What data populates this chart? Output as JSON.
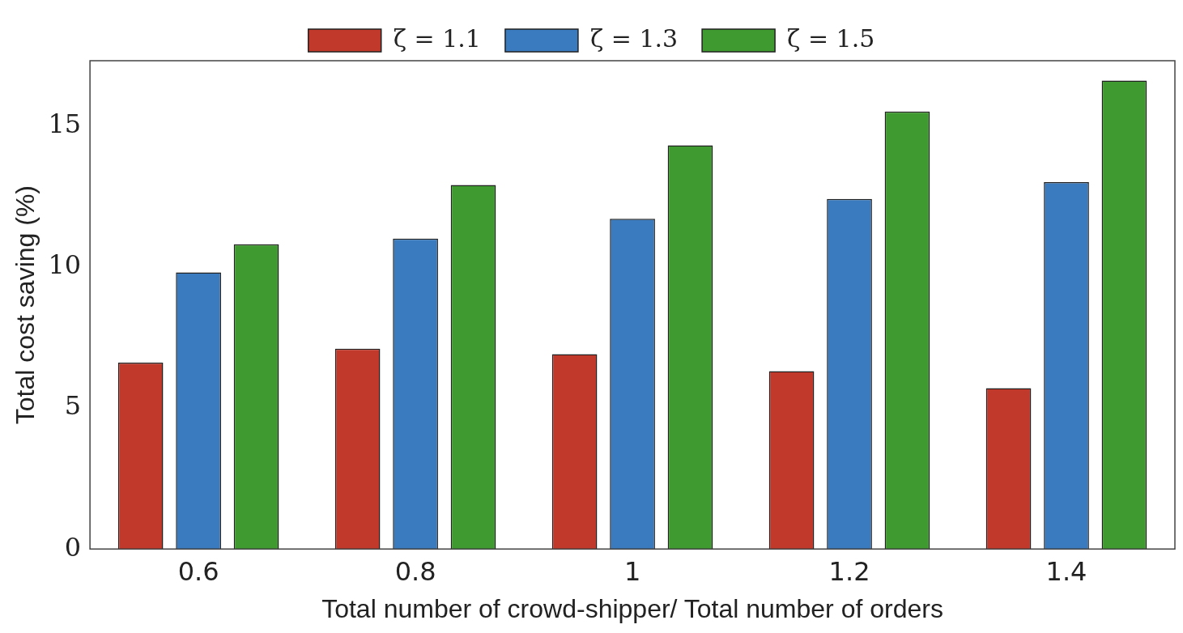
{
  "chart_data": {
    "type": "bar",
    "xlabel": "Total number of crowd-shipper/ Total number of orders",
    "ylabel": "Total cost saving (%)",
    "categories": [
      "0.6",
      "0.8",
      "1",
      "1.2",
      "1.4"
    ],
    "series": [
      {
        "name": "ζ = 1.1",
        "color": "#c0392b",
        "values": [
          6.6,
          7.1,
          6.9,
          6.3,
          5.7
        ]
      },
      {
        "name": "ζ = 1.3",
        "color": "#3a7bbf",
        "values": [
          9.8,
          11.0,
          11.7,
          12.4,
          13.0
        ]
      },
      {
        "name": "ζ = 1.5",
        "color": "#3f9a2f",
        "values": [
          10.8,
          12.9,
          14.3,
          15.5,
          16.6
        ]
      }
    ],
    "ylim": [
      0,
      17.3
    ],
    "yticks": [
      0,
      5,
      10,
      15
    ],
    "grid": false,
    "legend": "top"
  }
}
